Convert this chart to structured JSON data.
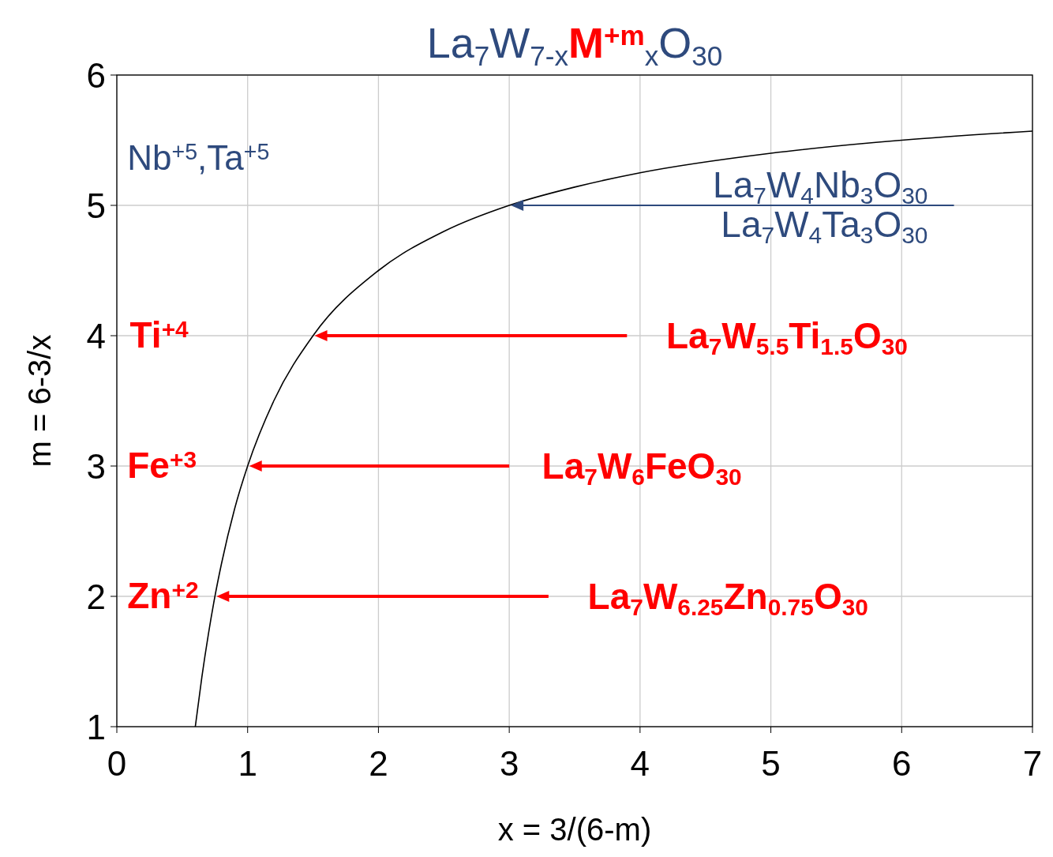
{
  "chart_data": {
    "type": "line",
    "title": "La$_{7}$W$_{7-x}$M$^{+m}$$_{x}$O$_{30}$",
    "xlabel": "x = 3/(6-m)",
    "ylabel": "m = 6-3/x",
    "series": [
      {
        "color": "#000000",
        "x": [
          0.6,
          0.65,
          0.7,
          0.75,
          0.8,
          0.9,
          1,
          1.2,
          1.5,
          2,
          2.5,
          3,
          3.5,
          4,
          5,
          6,
          7
        ],
        "values": [
          1,
          1.38,
          1.71,
          2,
          2.25,
          2.67,
          3,
          3.5,
          4,
          4.5,
          4.8,
          5,
          5.14,
          5.25,
          5.4,
          5.5,
          5.57
        ]
      }
    ],
    "xlim": [
      0,
      7
    ],
    "xticks": [
      0,
      1,
      2,
      3,
      4,
      5,
      6,
      7
    ],
    "ylim": [
      1,
      6
    ],
    "yticks": [
      1,
      2,
      3,
      4,
      5,
      6
    ],
    "grid": true,
    "marker": "none",
    "line_style": "solid",
    "annotations": [
      "Nb$^{+5}$,Ta$^{+5}$",
      "La$_{7}$W$_{4}$Nb$_{3}$O$_{30}$",
      "La$_{7}$W$_{4}$Ta$_{3}$O$_{30}$",
      "Ti$^{+4}$",
      "La$_{7}$W$_{5.5}$Ti$_{1.5}$O$_{30}$",
      "Fe$^{+3}$",
      "La$_{7}$W$_{6}$FeO$_{30}$",
      "Zn$^{+2}$",
      "La$_{7}$W$_{6.25}$Zn$_{0.75}$O$_{30}$"
    ]
  }
}
